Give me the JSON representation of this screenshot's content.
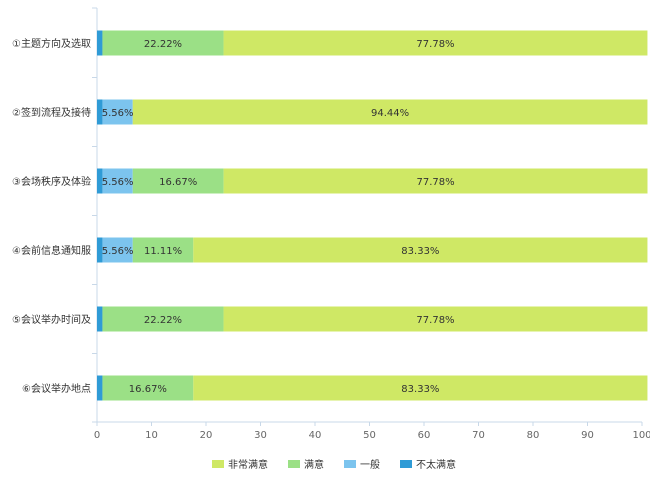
{
  "chart_data": {
    "type": "bar",
    "orientation": "horizontal",
    "stacked": true,
    "categories": [
      "①主题方向及选取",
      "②签到流程及接待",
      "③会场秩序及体验",
      "④会前信息通知服",
      "⑤会议举办时间及",
      "⑥会议举办地点"
    ],
    "series": [
      {
        "name": "不太满意",
        "color": "#2f9bd6",
        "values": [
          1,
          1,
          1,
          1,
          1,
          1
        ],
        "labels": [
          "",
          "",
          "",
          "",
          "",
          ""
        ]
      },
      {
        "name": "一般",
        "color": "#7cc4ee",
        "values": [
          0,
          5.56,
          5.56,
          5.56,
          0,
          0
        ],
        "labels": [
          "",
          "5.56%",
          "5.56%",
          "5.56%",
          "",
          ""
        ]
      },
      {
        "name": "满意",
        "color": "#9be086",
        "values": [
          22.22,
          0,
          16.67,
          11.11,
          22.22,
          16.67
        ],
        "labels": [
          "22.22%",
          "",
          "16.67%",
          "11.11%",
          "22.22%",
          "16.67%"
        ]
      },
      {
        "name": "非常满意",
        "color": "#cfe865",
        "values": [
          77.78,
          94.44,
          77.78,
          83.33,
          77.78,
          83.33
        ],
        "labels": [
          "77.78%",
          "94.44%",
          "77.78%",
          "83.33%",
          "77.78%",
          "83.33%"
        ]
      }
    ],
    "xlim": [
      0,
      100
    ],
    "xticks": [
      0,
      10,
      20,
      30,
      40,
      50,
      60,
      70,
      80,
      90,
      100
    ],
    "legend_position": "bottom",
    "legend_order": [
      "非常满意",
      "满意",
      "一般",
      "不太满意"
    ],
    "grid": false
  }
}
